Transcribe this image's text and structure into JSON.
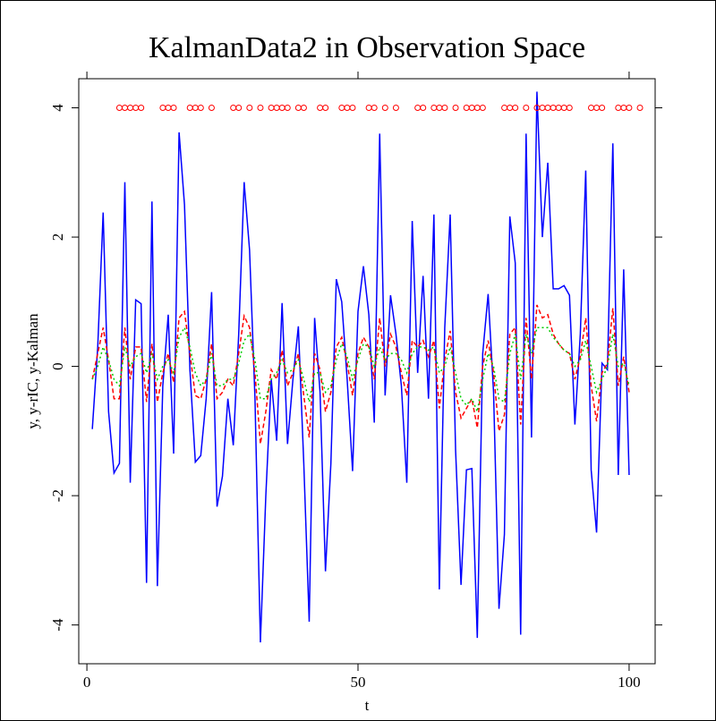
{
  "chart_data": {
    "type": "line",
    "title": "KalmanData2 in Observation Space",
    "xlabel": "t",
    "ylabel": "y, y-rIC, y-Kalman",
    "x": [
      1,
      2,
      3,
      4,
      5,
      6,
      7,
      8,
      9,
      10,
      11,
      12,
      13,
      14,
      15,
      16,
      17,
      18,
      19,
      20,
      21,
      22,
      23,
      24,
      25,
      26,
      27,
      28,
      29,
      30,
      31,
      32,
      33,
      34,
      35,
      36,
      37,
      38,
      39,
      40,
      41,
      42,
      43,
      44,
      45,
      46,
      47,
      48,
      49,
      50,
      51,
      52,
      53,
      54,
      55,
      56,
      57,
      58,
      59,
      60,
      61,
      62,
      63,
      64,
      65,
      66,
      67,
      68,
      69,
      70,
      71,
      72,
      73,
      74,
      75,
      76,
      77,
      78,
      79,
      80,
      81,
      82,
      83,
      84,
      85,
      86,
      87,
      88,
      89,
      90,
      91,
      92,
      93,
      94,
      95,
      96,
      97,
      98,
      99,
      100
    ],
    "series": [
      {
        "color": "#0000ff",
        "style": "solid",
        "values": [
          -0.97,
          0.3,
          2.38,
          -0.7,
          -1.65,
          -1.5,
          2.85,
          -1.8,
          1.03,
          0.97,
          -3.35,
          2.55,
          -3.4,
          -0.3,
          0.8,
          -1.35,
          3.62,
          2.5,
          -0.05,
          -1.48,
          -1.38,
          -0.5,
          1.15,
          -2.17,
          -1.7,
          -0.5,
          -1.22,
          0.5,
          2.85,
          1.8,
          -0.5,
          -4.27,
          -2.0,
          -0.2,
          -1.15,
          0.98,
          -1.2,
          -0.2,
          0.62,
          -1.5,
          -3.95,
          0.75,
          -0.4,
          -3.17,
          -1.5,
          1.35,
          1.0,
          -0.2,
          -1.62,
          0.85,
          1.55,
          0.8,
          -0.87,
          3.6,
          -0.45,
          1.1,
          0.5,
          -0.3,
          -1.8,
          2.25,
          -0.1,
          1.4,
          -0.5,
          2.35,
          -3.45,
          0.6,
          2.35,
          -1.3,
          -3.38,
          -1.6,
          -1.58,
          -4.2,
          0.2,
          1.12,
          -0.4,
          -3.75,
          -2.6,
          2.32,
          1.6,
          -4.15,
          3.6,
          -1.1,
          4.25,
          2.0,
          3.15,
          1.2,
          1.2,
          1.25,
          1.1,
          -0.9,
          0.5,
          3.03,
          -1.6,
          -2.57,
          0.05,
          -0.05,
          3.45,
          -1.68,
          1.5,
          -1.68
        ]
      },
      {
        "color": "#ff0000",
        "style": "dashed",
        "values": [
          -0.2,
          0.2,
          0.6,
          0.1,
          -0.5,
          -0.5,
          0.6,
          -0.2,
          0.3,
          0.3,
          -0.55,
          0.35,
          -0.55,
          -0.1,
          0.2,
          -0.25,
          0.75,
          0.85,
          0.2,
          -0.45,
          -0.5,
          -0.2,
          0.35,
          -0.5,
          -0.4,
          -0.2,
          -0.3,
          0.2,
          0.78,
          0.6,
          -0.1,
          -1.2,
          -0.7,
          -0.05,
          -0.2,
          0.25,
          -0.3,
          -0.1,
          0.2,
          -0.45,
          -1.1,
          0.2,
          -0.05,
          -0.7,
          -0.4,
          0.3,
          0.45,
          0.05,
          -0.45,
          0.2,
          0.45,
          0.3,
          -0.2,
          0.75,
          0,
          0.5,
          0.3,
          -0.1,
          -0.45,
          0.4,
          0.3,
          0.4,
          0.15,
          0.4,
          -0.65,
          0.1,
          0.55,
          -0.4,
          -0.8,
          -0.65,
          -0.5,
          -0.95,
          0,
          0.4,
          -0.1,
          -1.0,
          -0.75,
          0.5,
          0.6,
          -0.9,
          0.75,
          -0.2,
          0.95,
          0.75,
          0.8,
          0.5,
          0.35,
          0.25,
          0.2,
          -0.2,
          0.15,
          0.75,
          -0.3,
          -0.85,
          -0.1,
          0.05,
          0.9,
          -0.3,
          0.15,
          -0.4
        ]
      },
      {
        "color": "#00cc00",
        "style": "dotted",
        "values": [
          -0.2,
          0,
          0.3,
          0.1,
          -0.2,
          -0.3,
          0.3,
          0,
          0.15,
          0.2,
          -0.1,
          0.2,
          -0.2,
          0,
          0.1,
          -0.1,
          0.45,
          0.6,
          0.3,
          -0.1,
          -0.3,
          -0.2,
          0.2,
          -0.3,
          -0.3,
          -0.2,
          -0.2,
          0.05,
          0.4,
          0.5,
          0.1,
          -0.5,
          -0.5,
          -0.2,
          -0.1,
          0.1,
          -0.1,
          -0.05,
          0.1,
          -0.2,
          -0.55,
          -0.1,
          -0.1,
          -0.4,
          -0.3,
          0.1,
          0.35,
          0.15,
          -0.2,
          0.1,
          0.35,
          0.3,
          0,
          0.3,
          0.1,
          0.2,
          0.2,
          0.1,
          -0.1,
          0.2,
          0.3,
          0.3,
          0.25,
          0.3,
          -0.1,
          0,
          0.3,
          -0.1,
          -0.5,
          -0.6,
          -0.5,
          -0.7,
          -0.2,
          0.2,
          0,
          -0.5,
          -0.55,
          0.2,
          0.5,
          -0.2,
          0.5,
          0.2,
          0.6,
          0.6,
          0.6,
          0.45,
          0.35,
          0.25,
          0.2,
          0,
          0.1,
          0.4,
          0,
          -0.4,
          -0.2,
          0,
          0.5,
          0,
          0.05,
          -0.3
        ]
      },
      {
        "color": "#ff0000",
        "style": "points",
        "x": [
          6,
          7,
          8,
          9,
          10,
          14,
          15,
          16,
          19,
          20,
          21,
          23,
          27,
          28,
          30,
          32,
          34,
          35,
          36,
          37,
          39,
          40,
          43,
          44,
          47,
          48,
          49,
          52,
          53,
          55,
          57,
          61,
          62,
          64,
          65,
          66,
          68,
          70,
          71,
          72,
          73,
          77,
          78,
          79,
          81,
          83,
          84,
          85,
          86,
          87,
          88,
          89,
          93,
          94,
          95,
          98,
          99,
          100,
          102
        ],
        "values": [
          4,
          4,
          4,
          4,
          4,
          4,
          4,
          4,
          4,
          4,
          4,
          4,
          4,
          4,
          4,
          4,
          4,
          4,
          4,
          4,
          4,
          4,
          4,
          4,
          4,
          4,
          4,
          4,
          4,
          4,
          4,
          4,
          4,
          4,
          4,
          4,
          4,
          4,
          4,
          4,
          4,
          4,
          4,
          4,
          4,
          4,
          4,
          4,
          4,
          4,
          4,
          4,
          4,
          4,
          4,
          4,
          4,
          4,
          4
        ]
      }
    ],
    "xlim": [
      -1.5,
      104.8
    ],
    "ylim": [
      -4.6,
      4.45
    ],
    "xticks": [
      0,
      50,
      100
    ],
    "yticks": [
      -4,
      -2,
      0,
      2,
      4
    ]
  }
}
